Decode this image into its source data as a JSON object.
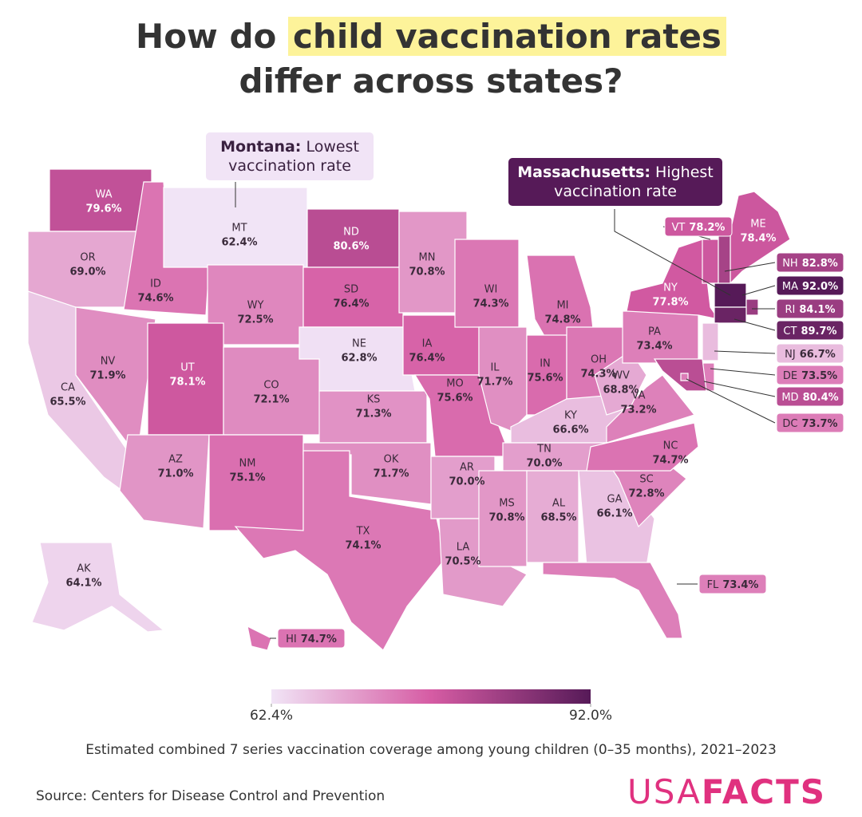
{
  "chart_data": {
    "type": "choropleth",
    "title": {
      "before": "How do",
      "highlight": "child vaccination rates",
      "after": "differ across states?"
    },
    "categories": [
      "WA",
      "OR",
      "CA",
      "NV",
      "ID",
      "MT",
      "WY",
      "UT",
      "AZ",
      "CO",
      "NM",
      "ND",
      "SD",
      "NE",
      "KS",
      "OK",
      "TX",
      "MN",
      "IA",
      "MO",
      "AR",
      "LA",
      "WI",
      "IL",
      "MI",
      "IN",
      "OH",
      "KY",
      "TN",
      "MS",
      "AL",
      "GA",
      "FL",
      "SC",
      "NC",
      "VA",
      "WV",
      "PA",
      "NY",
      "VT",
      "ME",
      "NH",
      "MA",
      "RI",
      "CT",
      "NJ",
      "DE",
      "MD",
      "DC",
      "AK",
      "HI"
    ],
    "values": [
      79.6,
      69.0,
      65.5,
      71.9,
      74.6,
      62.4,
      72.5,
      78.1,
      71.0,
      72.1,
      75.1,
      80.6,
      76.4,
      62.8,
      71.3,
      71.7,
      74.1,
      70.8,
      76.4,
      75.6,
      70.0,
      70.5,
      74.3,
      71.7,
      74.8,
      75.6,
      74.3,
      66.6,
      70.0,
      70.8,
      68.5,
      66.1,
      73.4,
      72.8,
      74.7,
      73.2,
      68.8,
      73.4,
      77.8,
      78.2,
      78.4,
      82.8,
      92.0,
      84.1,
      89.7,
      66.7,
      73.5,
      80.4,
      73.7,
      64.1,
      74.7
    ],
    "value_labels": [
      "79.6%",
      "69.0%",
      "65.5%",
      "71.9%",
      "74.6%",
      "62.4%",
      "72.5%",
      "78.1%",
      "71.0%",
      "72.1%",
      "75.1%",
      "80.6%",
      "76.4%",
      "62.8%",
      "71.3%",
      "71.7%",
      "74.1%",
      "70.8%",
      "76.4%",
      "75.6%",
      "70.0%",
      "70.5%",
      "74.3%",
      "71.7%",
      "74.8%",
      "75.6%",
      "74.3%",
      "66.6%",
      "70.0%",
      "70.8%",
      "68.5%",
      "66.1%",
      "73.4%",
      "72.8%",
      "74.7%",
      "73.2%",
      "68.8%",
      "73.4%",
      "77.8%",
      "78.2%",
      "78.4%",
      "82.8%",
      "92.0%",
      "84.1%",
      "89.7%",
      "66.7%",
      "73.5%",
      "80.4%",
      "73.7%",
      "64.1%",
      "74.7%"
    ],
    "colormap": [
      "#f1e4f6",
      "#d65ca4",
      "#561a58"
    ],
    "clim": [
      62.4,
      92.0
    ],
    "cticks": [
      {
        "value": 62.4,
        "label": "62.4%"
      },
      {
        "value": 92.0,
        "label": "92.0%"
      }
    ],
    "annotations": [
      {
        "bold": "Montana:",
        "text": "Lowest vaccination rate"
      },
      {
        "bold": "Massachusetts:",
        "text": "Highest vaccination rate"
      }
    ],
    "caption": "Estimated combined 7 series vaccination coverage among young children (0–35 months), 2021–2023",
    "source": "Source: Centers for Disease Control and Prevention",
    "logo": {
      "first": "USA",
      "second": "FACTS"
    }
  }
}
